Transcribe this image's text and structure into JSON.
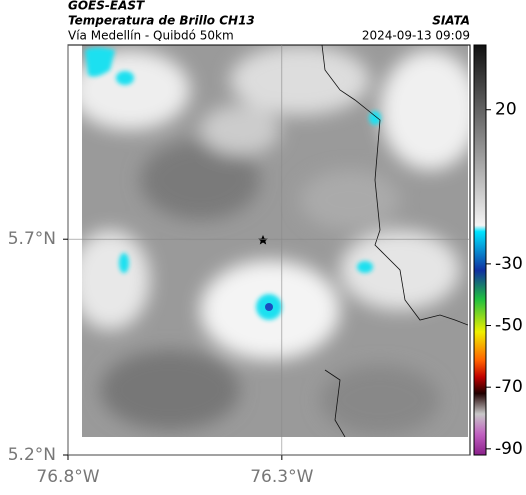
{
  "header": {
    "title": "GOES-EAST",
    "subtitle": "Temperatura de Brillo CH13",
    "source": "SIATA",
    "route": "Vía Medellín - Quibdó 50km",
    "timestamp": "2024-09-13 09:09"
  },
  "map": {
    "xlim": [
      -76.8,
      -75.86
    ],
    "ylim": [
      5.2,
      6.15
    ],
    "xticks": [
      {
        "value": -76.8,
        "label": "76.8°W"
      },
      {
        "value": -76.3,
        "label": "76.3°W"
      }
    ],
    "yticks": [
      {
        "value": 5.7,
        "label": "5.7°N"
      },
      {
        "value": 5.2,
        "label": "5.2°N"
      }
    ],
    "grid": true
  },
  "colorbar": {
    "lim": [
      -92,
      41
    ],
    "ticks": [
      20,
      -30,
      -50,
      -70,
      -90
    ]
  }
}
